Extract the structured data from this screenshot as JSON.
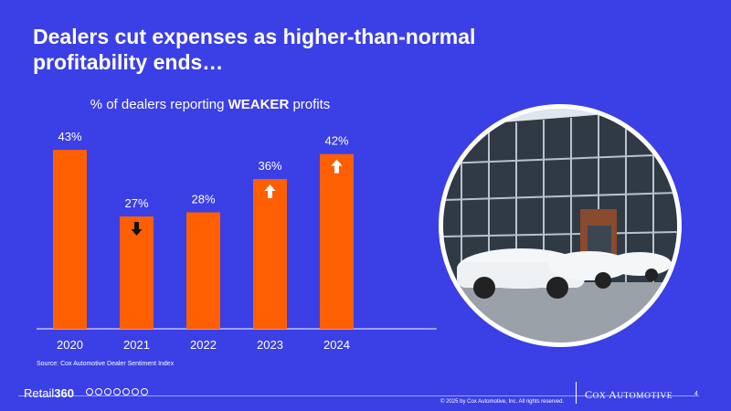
{
  "title": "Dealers cut expenses as higher-than-normal profitability ends…",
  "subtitle": {
    "prefix": "% of dealers reporting ",
    "emphasis": "WEAKER",
    "suffix": " profits"
  },
  "chart_data": {
    "type": "bar",
    "categories": [
      "2020",
      "2021",
      "2022",
      "2023",
      "2024"
    ],
    "values": [
      43,
      27,
      28,
      36,
      42
    ],
    "value_labels": [
      "43%",
      "27%",
      "28%",
      "36%",
      "42%"
    ],
    "trend": [
      "none",
      "down",
      "none",
      "up",
      "up"
    ],
    "ylim": [
      0,
      45
    ],
    "grid": false,
    "bar_color": "#ff5f00"
  },
  "source": "Source: Cox Automotive Dealer Sentiment Index",
  "footer": {
    "brand_prefix": "Retail",
    "brand_number": "360",
    "copyright": "© 2025 by Cox Automotive, Inc. All rights reserved.",
    "company_first": "C",
    "company_rest_1": "OX ",
    "company_second": "A",
    "company_rest_2": "UTOMOTIVE",
    "page": "4"
  },
  "colors": {
    "background": "#3b3fe6",
    "bar": "#ff5f00",
    "text": "#ffffff"
  },
  "photo_icon": "car-dealership-photo"
}
